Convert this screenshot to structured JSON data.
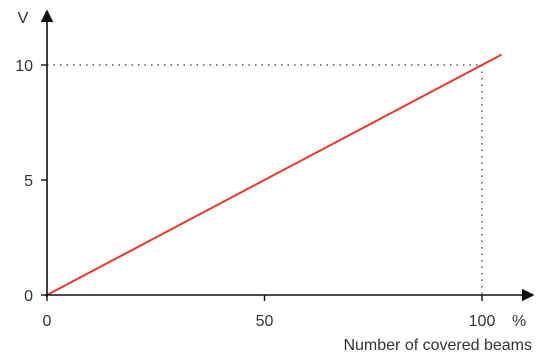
{
  "chart_data": {
    "type": "line",
    "ylabel": "V",
    "xunit": "%",
    "xlabel": "Number of covered beams",
    "xlim": [
      0,
      105
    ],
    "ylim": [
      0,
      10.5
    ],
    "x_ticks": [
      {
        "value": 0,
        "label": "0"
      },
      {
        "value": 50,
        "label": "50"
      },
      {
        "value": 100,
        "label": "100"
      }
    ],
    "y_ticks": [
      {
        "value": 0,
        "label": "0"
      },
      {
        "value": 5,
        "label": "5"
      },
      {
        "value": 10,
        "label": "10"
      }
    ],
    "series": [
      {
        "x": [
          0,
          104.5
        ],
        "y": [
          0,
          10.45
        ],
        "color": "#e8392c"
      }
    ],
    "reference_point": {
      "x": 100,
      "y": 10
    },
    "grid": false,
    "colors": {
      "axis": "#111111",
      "line": "#e8392c",
      "text": "#333333"
    }
  }
}
